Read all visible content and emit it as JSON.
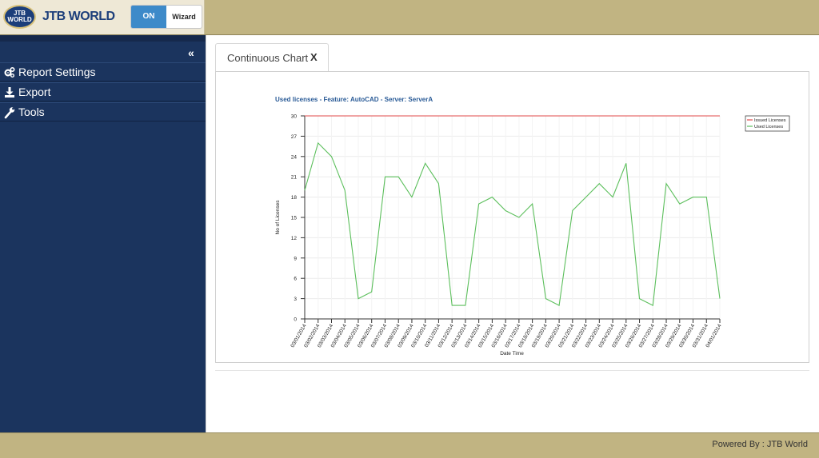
{
  "header": {
    "logo_badge_text": "JTB WORLD",
    "logo_text": "JTB WORLD",
    "toggle_on_label": "ON",
    "toggle_wizard_label": "Wizard"
  },
  "sidebar": {
    "collapse_glyph": "«",
    "items": [
      {
        "label": "Report Settings",
        "icon": "gears-icon"
      },
      {
        "label": "Export",
        "icon": "download-icon"
      },
      {
        "label": "Tools",
        "icon": "wrench-icon"
      }
    ]
  },
  "tabs": [
    {
      "label": "Continuous Chart",
      "close": "X"
    }
  ],
  "footer": {
    "text": "Powered By : JTB World"
  },
  "colors": {
    "header_bg": "#c1b482",
    "sidebar_bg": "#1b345e",
    "toggle_on": "#3d8ac9",
    "issued_line": "#e24b4b",
    "used_line": "#5cbf5c",
    "title_color": "#2a5b97"
  },
  "chart_data": {
    "type": "line",
    "title": "Used licenses - Feature: AutoCAD - Server: ServerA",
    "xlabel": "Date Time",
    "ylabel": "No of Licenses",
    "ylim": [
      0,
      30
    ],
    "yticks": [
      0,
      3,
      6,
      9,
      12,
      15,
      18,
      21,
      24,
      27,
      30
    ],
    "grid": true,
    "legend_position": "top-right",
    "categories": [
      "03/01/2014",
      "03/02/2014",
      "03/03/2014",
      "03/04/2014",
      "03/05/2014",
      "03/06/2014",
      "03/07/2014",
      "03/08/2014",
      "03/09/2014",
      "03/10/2014",
      "03/11/2014",
      "03/12/2014",
      "03/13/2014",
      "03/14/2014",
      "03/15/2014",
      "03/16/2014",
      "03/17/2014",
      "03/18/2014",
      "03/19/2014",
      "03/20/2014",
      "03/21/2014",
      "03/22/2014",
      "03/23/2014",
      "03/24/2014",
      "03/25/2014",
      "03/26/2014",
      "03/27/2014",
      "03/28/2014",
      "03/29/2014",
      "03/30/2014",
      "03/31/2014",
      "04/01/2014"
    ],
    "series": [
      {
        "name": "Issued Licenses",
        "color": "#e24b4b",
        "values": [
          30,
          30,
          30,
          30,
          30,
          30,
          30,
          30,
          30,
          30,
          30,
          30,
          30,
          30,
          30,
          30,
          30,
          30,
          30,
          30,
          30,
          30,
          30,
          30,
          30,
          30,
          30,
          30,
          30,
          30,
          30,
          30
        ]
      },
      {
        "name": "Used Licenses",
        "color": "#5cbf5c",
        "values": [
          19,
          26,
          24,
          19,
          3,
          4,
          21,
          21,
          18,
          23,
          20,
          2,
          2,
          17,
          18,
          16,
          15,
          17,
          3,
          2,
          16,
          18,
          20,
          18,
          23,
          3,
          2,
          20,
          17,
          18,
          18,
          3
        ]
      }
    ]
  }
}
